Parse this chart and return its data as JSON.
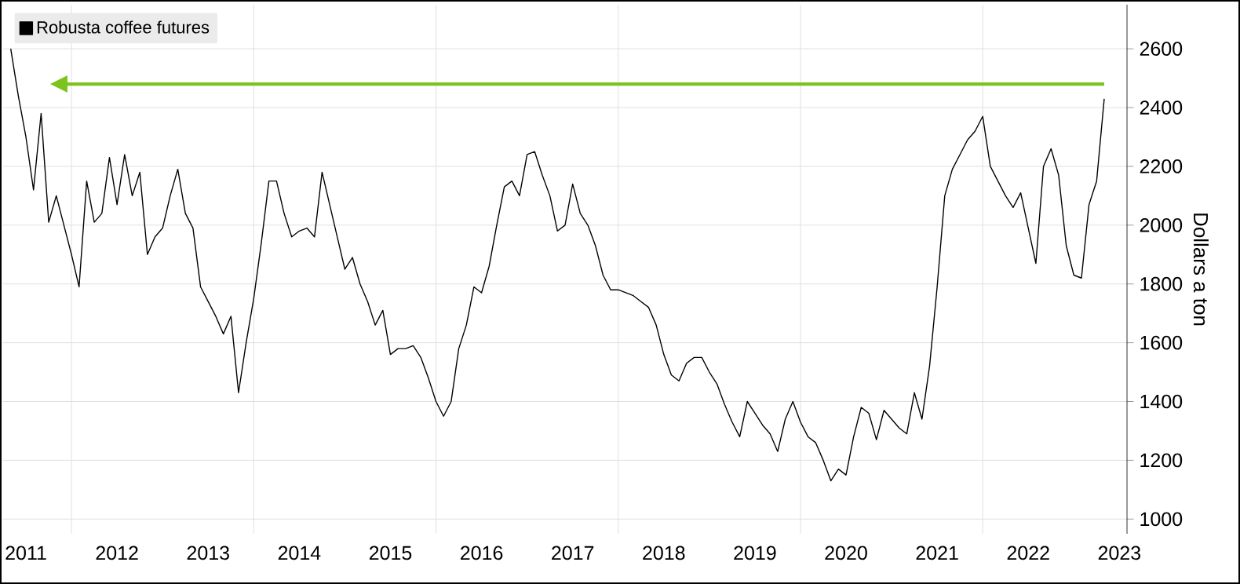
{
  "chart_data": {
    "type": "line",
    "ylabel": "Dollars a ton",
    "x": [
      "2011-05",
      "2011-06",
      "2011-07",
      "2011-08",
      "2011-09",
      "2011-10",
      "2011-11",
      "2011-12",
      "2012-01",
      "2012-02",
      "2012-03",
      "2012-04",
      "2012-05",
      "2012-06",
      "2012-07",
      "2012-08",
      "2012-09",
      "2012-10",
      "2012-11",
      "2012-12",
      "2013-01",
      "2013-02",
      "2013-03",
      "2013-04",
      "2013-05",
      "2013-06",
      "2013-07",
      "2013-08",
      "2013-09",
      "2013-10",
      "2013-11",
      "2013-12",
      "2014-01",
      "2014-02",
      "2014-03",
      "2014-04",
      "2014-05",
      "2014-06",
      "2014-07",
      "2014-08",
      "2014-09",
      "2014-10",
      "2014-11",
      "2014-12",
      "2015-01",
      "2015-02",
      "2015-03",
      "2015-04",
      "2015-05",
      "2015-06",
      "2015-07",
      "2015-08",
      "2015-09",
      "2015-10",
      "2015-11",
      "2015-12",
      "2016-01",
      "2016-02",
      "2016-03",
      "2016-04",
      "2016-05",
      "2016-06",
      "2016-07",
      "2016-08",
      "2016-09",
      "2016-10",
      "2016-11",
      "2016-12",
      "2017-01",
      "2017-02",
      "2017-03",
      "2017-04",
      "2017-05",
      "2017-06",
      "2017-07",
      "2017-08",
      "2017-09",
      "2017-10",
      "2017-11",
      "2017-12",
      "2018-01",
      "2018-02",
      "2018-03",
      "2018-04",
      "2018-05",
      "2018-06",
      "2018-07",
      "2018-08",
      "2018-09",
      "2018-10",
      "2018-11",
      "2018-12",
      "2019-01",
      "2019-02",
      "2019-03",
      "2019-04",
      "2019-05",
      "2019-06",
      "2019-07",
      "2019-08",
      "2019-09",
      "2019-10",
      "2019-11",
      "2019-12",
      "2020-01",
      "2020-02",
      "2020-03",
      "2020-04",
      "2020-05",
      "2020-06",
      "2020-07",
      "2020-08",
      "2020-09",
      "2020-10",
      "2020-11",
      "2020-12",
      "2021-01",
      "2021-02",
      "2021-03",
      "2021-04",
      "2021-05",
      "2021-06",
      "2021-07",
      "2021-08",
      "2021-09",
      "2021-10",
      "2021-11",
      "2021-12",
      "2022-01",
      "2022-02",
      "2022-03",
      "2022-04",
      "2022-05",
      "2022-06",
      "2022-07",
      "2022-08",
      "2022-09",
      "2022-10",
      "2022-11",
      "2022-12",
      "2023-01",
      "2023-02",
      "2023-03",
      "2023-04",
      "2023-05"
    ],
    "series": [
      {
        "name": "Robusta coffee futures",
        "color": "#000000",
        "values": [
          2600,
          2440,
          2300,
          2120,
          2380,
          2010,
          2100,
          2000,
          1900,
          1790,
          2150,
          2010,
          2040,
          2230,
          2070,
          2240,
          2100,
          2180,
          1900,
          1960,
          1990,
          2100,
          2190,
          2040,
          1990,
          1790,
          1740,
          1690,
          1630,
          1690,
          1430,
          1600,
          1750,
          1940,
          2150,
          2150,
          2040,
          1960,
          1980,
          1990,
          1960,
          2180,
          2070,
          1960,
          1850,
          1890,
          1800,
          1740,
          1660,
          1710,
          1560,
          1580,
          1580,
          1590,
          1550,
          1480,
          1400,
          1350,
          1400,
          1580,
          1660,
          1790,
          1770,
          1860,
          2000,
          2130,
          2150,
          2100,
          2240,
          2250,
          2170,
          2100,
          1980,
          2000,
          2140,
          2040,
          2000,
          1930,
          1830,
          1780,
          1780,
          1770,
          1760,
          1740,
          1720,
          1660,
          1560,
          1490,
          1470,
          1530,
          1550,
          1550,
          1500,
          1460,
          1390,
          1330,
          1280,
          1400,
          1360,
          1320,
          1290,
          1230,
          1340,
          1400,
          1330,
          1280,
          1260,
          1200,
          1130,
          1170,
          1150,
          1280,
          1380,
          1360,
          1270,
          1370,
          1340,
          1310,
          1290,
          1430,
          1340,
          1520,
          1790,
          2100,
          2190,
          2240,
          2290,
          2320,
          2370,
          2200,
          2150,
          2100,
          2060,
          2110,
          1990,
          1870,
          2200,
          2260,
          2170,
          1930,
          1830,
          1820,
          2070,
          2150,
          2430
        ]
      }
    ],
    "xlim": [
      "2011-04",
      "2023-08"
    ],
    "xticks": [
      {
        "value": "2011-07",
        "label": "2011"
      },
      {
        "value": "2012-07",
        "label": "2012"
      },
      {
        "value": "2013-07",
        "label": "2013"
      },
      {
        "value": "2014-07",
        "label": "2014"
      },
      {
        "value": "2015-07",
        "label": "2015"
      },
      {
        "value": "2016-07",
        "label": "2016"
      },
      {
        "value": "2017-07",
        "label": "2017"
      },
      {
        "value": "2018-07",
        "label": "2018"
      },
      {
        "value": "2019-07",
        "label": "2019"
      },
      {
        "value": "2020-07",
        "label": "2020"
      },
      {
        "value": "2021-07",
        "label": "2021"
      },
      {
        "value": "2022-07",
        "label": "2022"
      },
      {
        "value": "2023-07",
        "label": "2023"
      },
      {
        "value": "2012-01",
        "label": null
      },
      {
        "value": "2014-01",
        "label": null
      },
      {
        "value": "2016-01",
        "label": null
      },
      {
        "value": "2018-01",
        "label": null
      },
      {
        "value": "2020-01",
        "label": null
      },
      {
        "value": "2022-01",
        "label": null
      }
    ],
    "ylim": [
      950,
      2750
    ],
    "yticks": [
      1000,
      1200,
      1400,
      1600,
      1800,
      2000,
      2200,
      2400,
      2600
    ],
    "ref_lines": [
      {
        "axis": "y",
        "value": 2480,
        "color": "#7dc31e"
      }
    ],
    "grid": true,
    "legend": "top left"
  }
}
